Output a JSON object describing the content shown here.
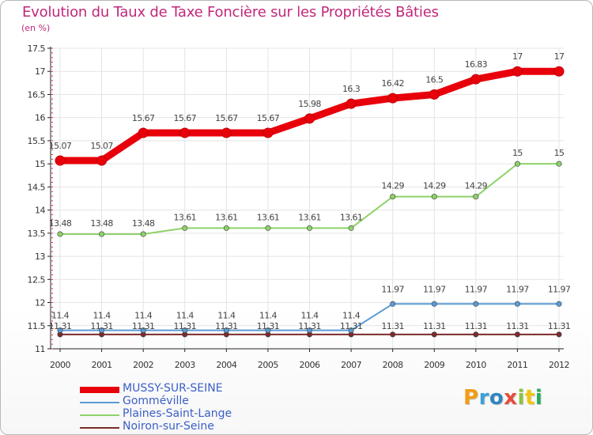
{
  "chart_data": {
    "type": "line",
    "title": "Evolution du Taux de Taxe Foncière sur les Propriétés Bâties",
    "unit_label": "(en %)",
    "xlabel": "",
    "ylabel": "",
    "x": [
      "2000",
      "2001",
      "2002",
      "2003",
      "2004",
      "2005",
      "2006",
      "2007",
      "2008",
      "2009",
      "2010",
      "2011",
      "2012"
    ],
    "ylim": [
      11,
      17.5
    ],
    "yticks": [
      11,
      11.5,
      12,
      12.5,
      13,
      13.5,
      14,
      14.5,
      15,
      15.5,
      16,
      16.5,
      17,
      17.5
    ],
    "series": [
      {
        "name": "MUSSY-SUR-SEINE",
        "color": "#e8000b",
        "values": [
          15.07,
          15.07,
          15.67,
          15.67,
          15.67,
          15.67,
          15.98,
          16.3,
          16.42,
          16.5,
          16.83,
          17,
          17
        ],
        "labels": [
          "15.07",
          "15.07",
          "15.67",
          "15.67",
          "15.67",
          "15.67",
          "15.98",
          "16.3",
          "16.42",
          "16.5",
          "16.83",
          "17",
          "17"
        ]
      },
      {
        "name": "Gomméville",
        "color": "#5b9bd5",
        "values": [
          11.4,
          11.4,
          11.4,
          11.4,
          11.4,
          11.4,
          11.4,
          11.4,
          11.97,
          11.97,
          11.97,
          11.97,
          11.97
        ],
        "labels": [
          "11.4",
          "11.4",
          "11.4",
          "11.4",
          "11.4",
          "11.4",
          "11.4",
          "11.4",
          "11.97",
          "11.97",
          "11.97",
          "11.97",
          "11.97"
        ]
      },
      {
        "name": "Plaines-Saint-Lange",
        "color": "#8ed26a",
        "values": [
          13.48,
          13.48,
          13.48,
          13.61,
          13.61,
          13.61,
          13.61,
          13.61,
          14.29,
          14.29,
          14.29,
          15,
          15
        ],
        "labels": [
          "13.48",
          "13.48",
          "13.48",
          "13.61",
          "13.61",
          "13.61",
          "13.61",
          "13.61",
          "14.29",
          "14.29",
          "14.29",
          "15",
          "15"
        ]
      },
      {
        "name": "Noiron-sur-Seine",
        "color": "#7d2b2b",
        "values": [
          11.31,
          11.31,
          11.31,
          11.31,
          11.31,
          11.31,
          11.31,
          11.31,
          11.31,
          11.31,
          11.31,
          11.31,
          11.31
        ],
        "labels": [
          "11.31",
          "11.31",
          "11.31",
          "11.31",
          "11.31",
          "11.31",
          "11.31",
          "11.31",
          "11.31",
          "11.31",
          "11.31",
          "11.31",
          "11.31"
        ]
      }
    ],
    "legend_position": "bottom-left"
  },
  "brand": {
    "letters": [
      "P",
      "r",
      "o",
      "x",
      "i",
      "t",
      "i"
    ],
    "colors": [
      "#f39c12",
      "#3aa0d8",
      "#2e86c1",
      "#e74c3c",
      "#8ac43f",
      "#f1c40f",
      "#27ae60"
    ]
  }
}
